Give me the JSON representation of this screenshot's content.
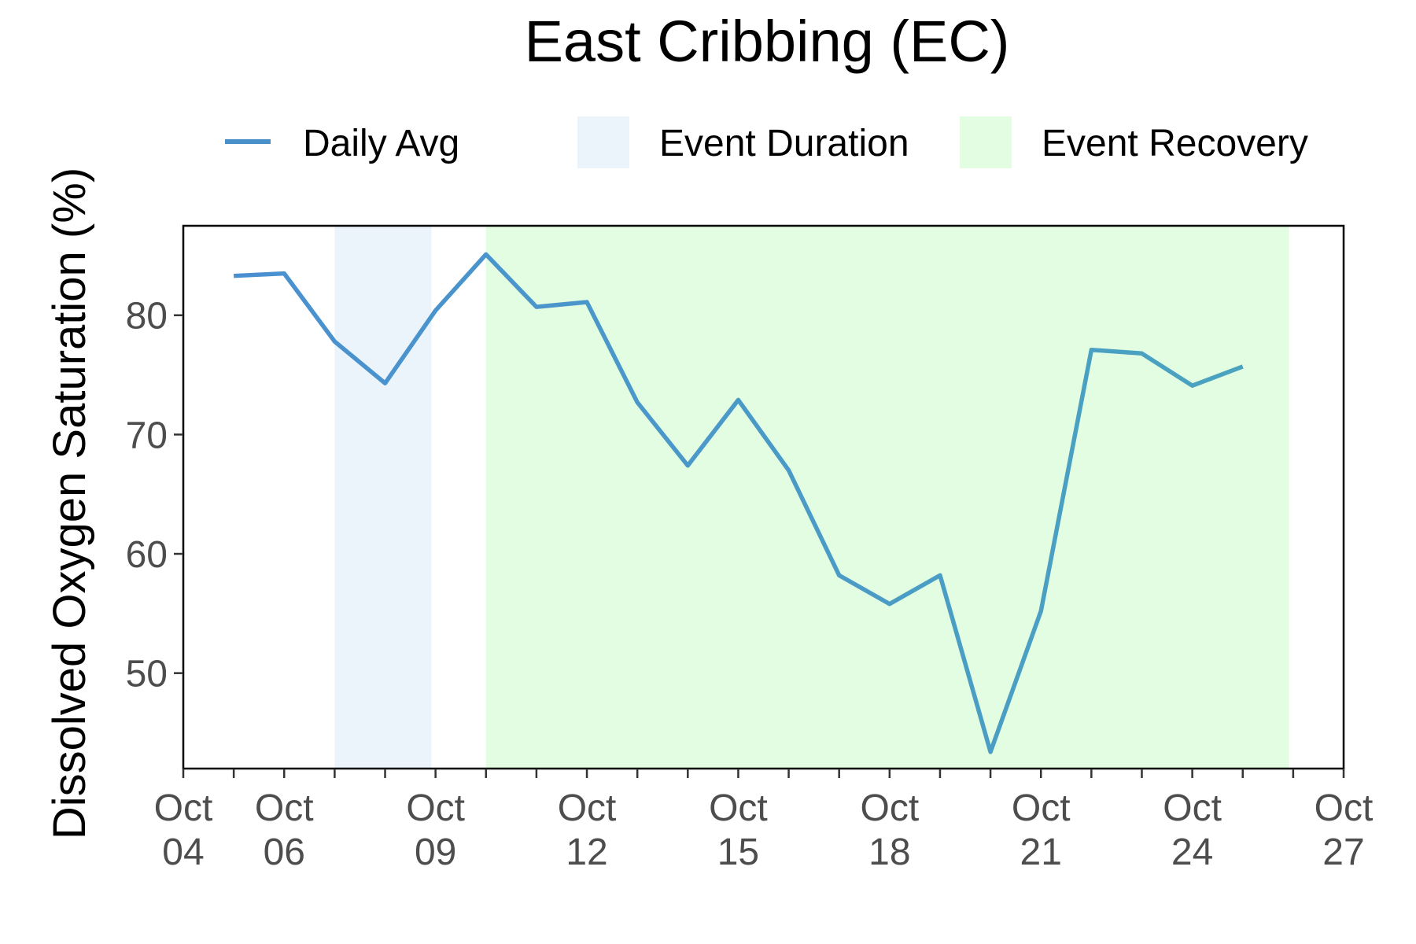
{
  "chart_data": {
    "type": "line",
    "title": "East Cribbing (EC)",
    "xlabel": "",
    "ylabel": "Dissolved Oxygen Saturation (%)",
    "x_axis": {
      "kind": "date",
      "range": [
        "2023-10-04",
        "2023-10-27"
      ],
      "ticks": [
        {
          "date": "2023-10-04",
          "label": [
            "Oct",
            "04"
          ]
        },
        {
          "date": "2023-10-06",
          "label": [
            "Oct",
            "06"
          ]
        },
        {
          "date": "2023-10-09",
          "label": [
            "Oct",
            "09"
          ]
        },
        {
          "date": "2023-10-12",
          "label": [
            "Oct",
            "12"
          ]
        },
        {
          "date": "2023-10-15",
          "label": [
            "Oct",
            "15"
          ]
        },
        {
          "date": "2023-10-18",
          "label": [
            "Oct",
            "18"
          ]
        },
        {
          "date": "2023-10-21",
          "label": [
            "Oct",
            "21"
          ]
        },
        {
          "date": "2023-10-24",
          "label": [
            "Oct",
            "24"
          ]
        },
        {
          "date": "2023-10-27",
          "label": [
            "Oct",
            "27"
          ]
        }
      ]
    },
    "y_axis": {
      "range": [
        42,
        87.5
      ],
      "ticks": [
        50,
        60,
        70,
        80
      ]
    },
    "grid": false,
    "legend": {
      "placement": "top",
      "items": [
        {
          "label": "Daily Avg",
          "kind": "line",
          "color": "#4a90c8"
        },
        {
          "label": "Event Duration",
          "kind": "fill",
          "color": "#ebf3fb"
        },
        {
          "label": "Event Recovery",
          "kind": "fill",
          "color": "#e2fde2"
        }
      ]
    },
    "shaded_regions": [
      {
        "label": "Event Duration",
        "start": "2023-10-07",
        "end": "2023-10-08 22:00",
        "color": "#ebf3fb"
      },
      {
        "label": "Event Recovery",
        "start": "2023-10-10",
        "end": "2023-10-25 22:00",
        "color": "#e2fde2"
      }
    ],
    "series": [
      {
        "name": "Daily Avg",
        "color_start": "#4a90d0",
        "color_end": "#4aa3bf",
        "x": [
          "2023-10-05",
          "2023-10-06",
          "2023-10-07",
          "2023-10-08",
          "2023-10-09",
          "2023-10-10",
          "2023-10-11",
          "2023-10-12",
          "2023-10-13",
          "2023-10-14",
          "2023-10-15",
          "2023-10-16",
          "2023-10-17",
          "2023-10-18",
          "2023-10-19",
          "2023-10-20",
          "2023-10-21",
          "2023-10-22",
          "2023-10-23",
          "2023-10-24",
          "2023-10-25"
        ],
        "values": [
          83.3,
          83.5,
          77.8,
          74.3,
          80.4,
          85.1,
          80.7,
          81.1,
          72.7,
          67.4,
          72.9,
          67.0,
          58.2,
          55.8,
          58.2,
          43.4,
          55.2,
          77.1,
          76.8,
          74.1,
          75.7
        ]
      }
    ]
  }
}
